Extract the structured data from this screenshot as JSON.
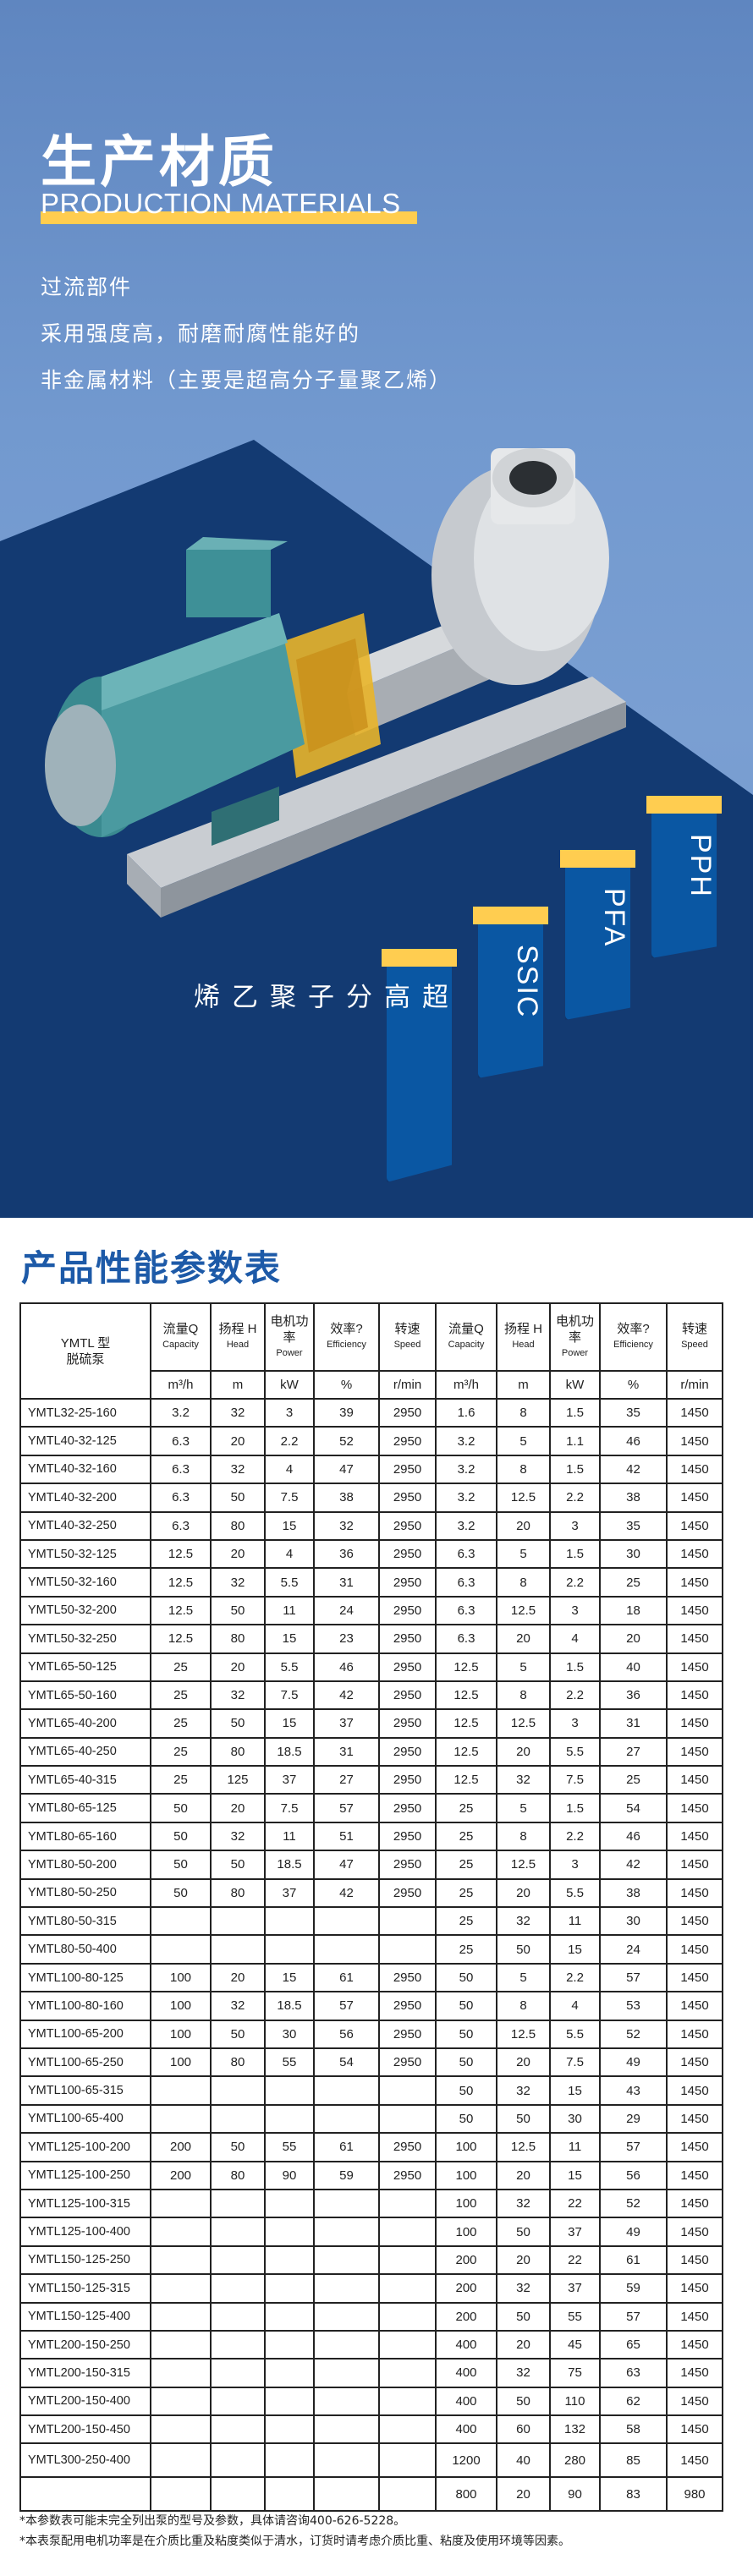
{
  "hero": {
    "title": "生产材质",
    "subtitle": "PRODUCTION MATERIALS",
    "lines": [
      "过流部件",
      "采用强度高，耐磨耐腐性能好的",
      "非金属材料（主要是超高分子量聚乙烯）"
    ],
    "materials": [
      "超高分子聚乙烯",
      "SSIC",
      "PFA",
      "PPH"
    ],
    "colors": {
      "accent": "#ffcd4f",
      "navy": "#133a72",
      "tab": "#0a57a3",
      "sky": "#7299cf"
    }
  },
  "table": {
    "title": "产品性能参数表",
    "model_header": [
      "YMTL 型",
      "脱硫泵"
    ],
    "headers": [
      {
        "cn": "流量Q",
        "en": "Capacity"
      },
      {
        "cn": "扬程 H",
        "en": "Head"
      },
      {
        "cn": "电机功率",
        "en": "Power"
      },
      {
        "cn": "效率?",
        "en": "Efficiency"
      },
      {
        "cn": "转速",
        "en": "Speed"
      },
      {
        "cn": "流量Q",
        "en": "Capacity"
      },
      {
        "cn": "扬程 H",
        "en": "Head"
      },
      {
        "cn": "电机功率",
        "en": "Power"
      },
      {
        "cn": "效率?",
        "en": "Efficiency"
      },
      {
        "cn": "转速",
        "en": "Speed"
      }
    ],
    "units": [
      "m³/h",
      "m",
      "kW",
      "%",
      "r/min",
      "m³/h",
      "m",
      "kW",
      "%",
      "r/min"
    ],
    "rows": [
      [
        "YMTL32-25-160",
        "3.2",
        "32",
        "3",
        "39",
        "2950",
        "1.6",
        "8",
        "1.5",
        "35",
        "1450"
      ],
      [
        "YMTL40-32-125",
        "6.3",
        "20",
        "2.2",
        "52",
        "2950",
        "3.2",
        "5",
        "1.1",
        "46",
        "1450"
      ],
      [
        "YMTL40-32-160",
        "6.3",
        "32",
        "4",
        "47",
        "2950",
        "3.2",
        "8",
        "1.5",
        "42",
        "1450"
      ],
      [
        "YMTL40-32-200",
        "6.3",
        "50",
        "7.5",
        "38",
        "2950",
        "3.2",
        "12.5",
        "2.2",
        "38",
        "1450"
      ],
      [
        "YMTL40-32-250",
        "6.3",
        "80",
        "15",
        "32",
        "2950",
        "3.2",
        "20",
        "3",
        "35",
        "1450"
      ],
      [
        "YMTL50-32-125",
        "12.5",
        "20",
        "4",
        "36",
        "2950",
        "6.3",
        "5",
        "1.5",
        "30",
        "1450"
      ],
      [
        "YMTL50-32-160",
        "12.5",
        "32",
        "5.5",
        "31",
        "2950",
        "6.3",
        "8",
        "2.2",
        "25",
        "1450"
      ],
      [
        "YMTL50-32-200",
        "12.5",
        "50",
        "11",
        "24",
        "2950",
        "6.3",
        "12.5",
        "3",
        "18",
        "1450"
      ],
      [
        "YMTL50-32-250",
        "12.5",
        "80",
        "15",
        "23",
        "2950",
        "6.3",
        "20",
        "4",
        "20",
        "1450"
      ],
      [
        "YMTL65-50-125",
        "25",
        "20",
        "5.5",
        "46",
        "2950",
        "12.5",
        "5",
        "1.5",
        "40",
        "1450"
      ],
      [
        "YMTL65-50-160",
        "25",
        "32",
        "7.5",
        "42",
        "2950",
        "12.5",
        "8",
        "2.2",
        "36",
        "1450"
      ],
      [
        "YMTL65-40-200",
        "25",
        "50",
        "15",
        "37",
        "2950",
        "12.5",
        "12.5",
        "3",
        "31",
        "1450"
      ],
      [
        "YMTL65-40-250",
        "25",
        "80",
        "18.5",
        "31",
        "2950",
        "12.5",
        "20",
        "5.5",
        "27",
        "1450"
      ],
      [
        "YMTL65-40-315",
        "25",
        "125",
        "37",
        "27",
        "2950",
        "12.5",
        "32",
        "7.5",
        "25",
        "1450"
      ],
      [
        "YMTL80-65-125",
        "50",
        "20",
        "7.5",
        "57",
        "2950",
        "25",
        "5",
        "1.5",
        "54",
        "1450"
      ],
      [
        "YMTL80-65-160",
        "50",
        "32",
        "11",
        "51",
        "2950",
        "25",
        "8",
        "2.2",
        "46",
        "1450"
      ],
      [
        "YMTL80-50-200",
        "50",
        "50",
        "18.5",
        "47",
        "2950",
        "25",
        "12.5",
        "3",
        "42",
        "1450"
      ],
      [
        "YMTL80-50-250",
        "50",
        "80",
        "37",
        "42",
        "2950",
        "25",
        "20",
        "5.5",
        "38",
        "1450"
      ],
      [
        "YMTL80-50-315",
        "",
        "",
        "",
        "",
        "",
        "25",
        "32",
        "11",
        "30",
        "1450"
      ],
      [
        "YMTL80-50-400",
        "",
        "",
        "",
        "",
        "",
        "25",
        "50",
        "15",
        "24",
        "1450"
      ],
      [
        "YMTL100-80-125",
        "100",
        "20",
        "15",
        "61",
        "2950",
        "50",
        "5",
        "2.2",
        "57",
        "1450"
      ],
      [
        "YMTL100-80-160",
        "100",
        "32",
        "18.5",
        "57",
        "2950",
        "50",
        "8",
        "4",
        "53",
        "1450"
      ],
      [
        "YMTL100-65-200",
        "100",
        "50",
        "30",
        "56",
        "2950",
        "50",
        "12.5",
        "5.5",
        "52",
        "1450"
      ],
      [
        "YMTL100-65-250",
        "100",
        "80",
        "55",
        "54",
        "2950",
        "50",
        "20",
        "7.5",
        "49",
        "1450"
      ],
      [
        "YMTL100-65-315",
        "",
        "",
        "",
        "",
        "",
        "50",
        "32",
        "15",
        "43",
        "1450"
      ],
      [
        "YMTL100-65-400",
        "",
        "",
        "",
        "",
        "",
        "50",
        "50",
        "30",
        "29",
        "1450"
      ],
      [
        "YMTL125-100-200",
        "200",
        "50",
        "55",
        "61",
        "2950",
        "100",
        "12.5",
        "11",
        "57",
        "1450"
      ],
      [
        "YMTL125-100-250",
        "200",
        "80",
        "90",
        "59",
        "2950",
        "100",
        "20",
        "15",
        "56",
        "1450"
      ],
      [
        "YMTL125-100-315",
        "",
        "",
        "",
        "",
        "",
        "100",
        "32",
        "22",
        "52",
        "1450"
      ],
      [
        "YMTL125-100-400",
        "",
        "",
        "",
        "",
        "",
        "100",
        "50",
        "37",
        "49",
        "1450"
      ],
      [
        "YMTL150-125-250",
        "",
        "",
        "",
        "",
        "",
        "200",
        "20",
        "22",
        "61",
        "1450"
      ],
      [
        "YMTL150-125-315",
        "",
        "",
        "",
        "",
        "",
        "200",
        "32",
        "37",
        "59",
        "1450"
      ],
      [
        "YMTL150-125-400",
        "",
        "",
        "",
        "",
        "",
        "200",
        "50",
        "55",
        "57",
        "1450"
      ],
      [
        "YMTL200-150-250",
        "",
        "",
        "",
        "",
        "",
        "400",
        "20",
        "45",
        "65",
        "1450"
      ],
      [
        "YMTL200-150-315",
        "",
        "",
        "",
        "",
        "",
        "400",
        "32",
        "75",
        "63",
        "1450"
      ],
      [
        "YMTL200-150-400",
        "",
        "",
        "",
        "",
        "",
        "400",
        "50",
        "110",
        "62",
        "1450"
      ],
      [
        "YMTL200-150-450",
        "",
        "",
        "",
        "",
        "",
        "400",
        "60",
        "132",
        "58",
        "1450"
      ],
      [
        "YMTL300-250-400",
        "",
        "",
        "",
        "",
        "",
        "1200",
        "40",
        "280",
        "85",
        "1450"
      ],
      [
        "",
        "",
        "",
        "",
        "",
        "",
        "800",
        "20",
        "90",
        "83",
        "980"
      ]
    ],
    "notes": [
      "*本参数表可能未完全列出泵的型号及参数，具体请咨询400-626-5228。",
      "*本表泵配用电机功率是在介质比重及粘度类似于清水，订货时请考虑介质比重、粘度及使用环境等因素。"
    ]
  }
}
